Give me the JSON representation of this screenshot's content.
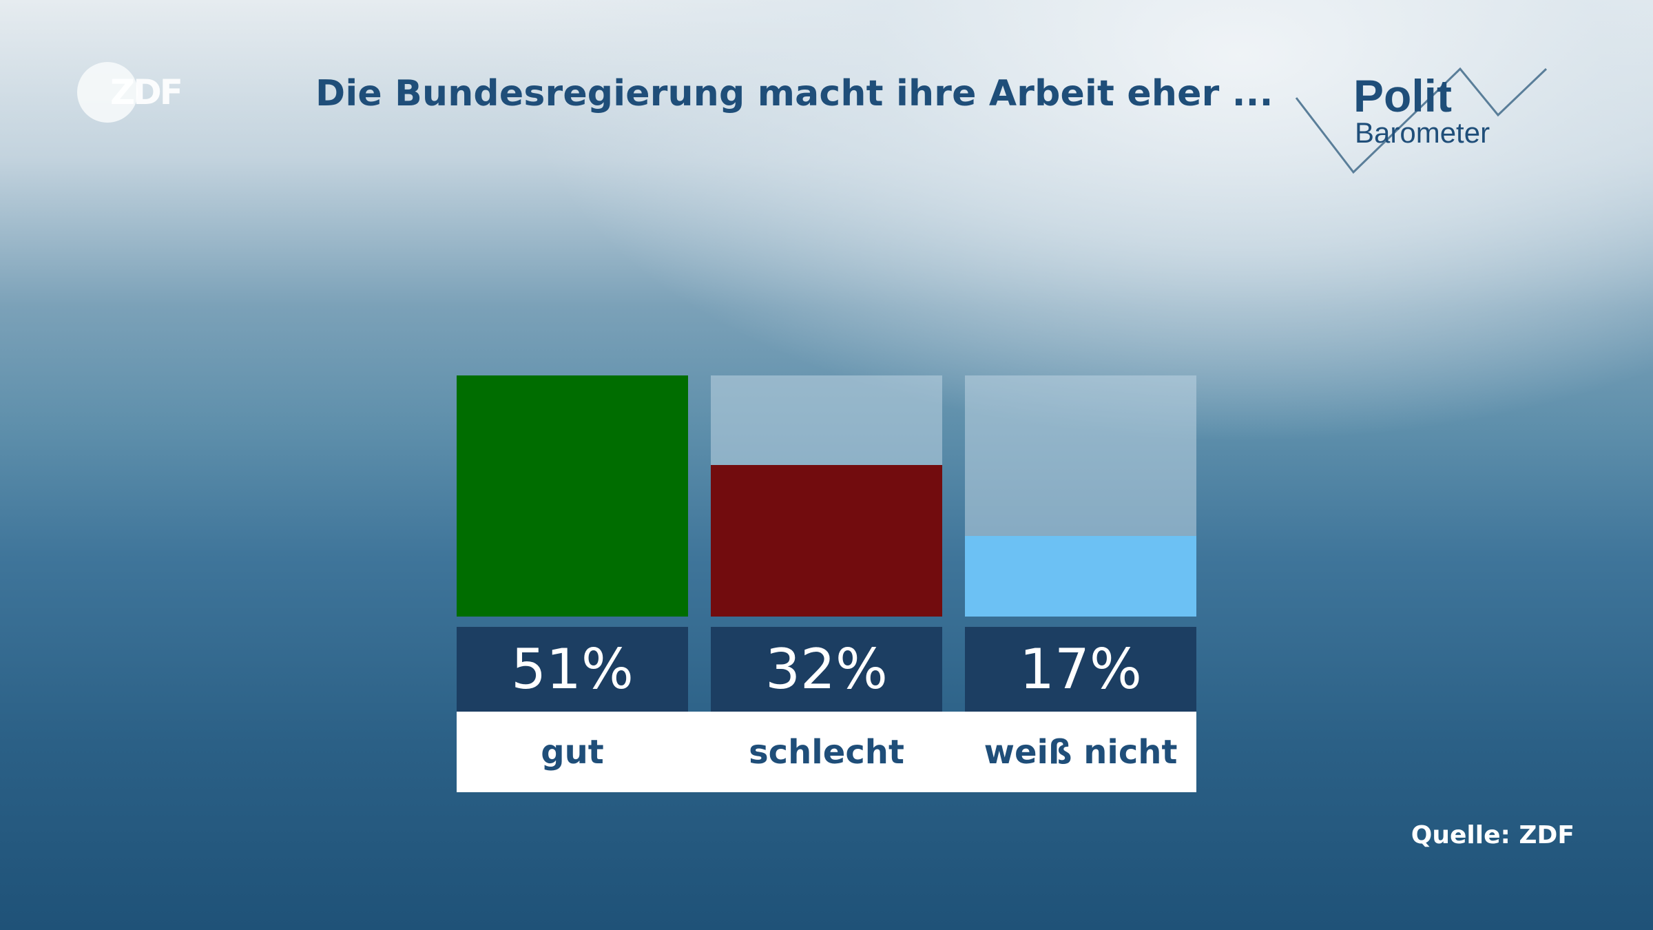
{
  "header": {
    "broadcaster_logo": "ZDF",
    "title": "Die Bundesregierung macht ihre Arbeit eher ...",
    "show_logo": {
      "line1": "Polit",
      "line2": "Barometer"
    }
  },
  "footer": {
    "source": "Quelle: ZDF"
  },
  "chart_data": {
    "type": "bar",
    "title": "Die Bundesregierung macht ihre Arbeit eher ...",
    "categories": [
      "gut",
      "schlecht",
      "weiß nicht"
    ],
    "values": [
      51,
      32,
      17
    ],
    "value_labels": [
      "51%",
      "32%",
      "17%"
    ],
    "unit": "%",
    "ylim": [
      0,
      51
    ],
    "colors": [
      "#006d00",
      "#720c0e",
      "#6cc1f4"
    ],
    "grid": false,
    "legend": "none"
  }
}
